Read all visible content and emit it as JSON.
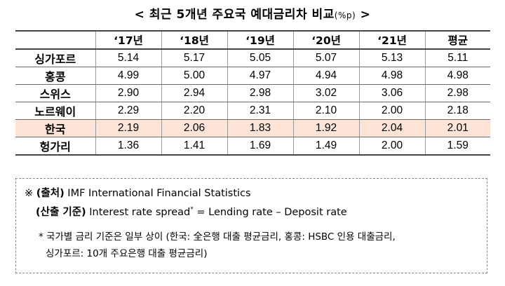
{
  "title": {
    "text": "< 최근 5개년 주요국 예대금리차 비교",
    "unit": "(%p)",
    "close": " >"
  },
  "table": {
    "headers": [
      "",
      "‘17년",
      "‘18년",
      "‘19년",
      "‘20년",
      "‘21년",
      "평균"
    ],
    "rows": [
      {
        "country": "싱가포르",
        "values": [
          "5.14",
          "5.17",
          "5.05",
          "5.07",
          "5.13",
          "5.11"
        ]
      },
      {
        "country": "홍콩",
        "values": [
          "4.99",
          "5.00",
          "4.97",
          "4.94",
          "4.98",
          "4.98"
        ]
      },
      {
        "country": "스위스",
        "values": [
          "2.90",
          "2.94",
          "2.98",
          "3.02",
          "3.06",
          "2.98"
        ]
      },
      {
        "country": "노르웨이",
        "values": [
          "2.29",
          "2.20",
          "2.31",
          "2.10",
          "2.00",
          "2.18"
        ]
      },
      {
        "country": "한국",
        "values": [
          "2.19",
          "2.06",
          "1.83",
          "1.92",
          "2.04",
          "2.01"
        ]
      },
      {
        "country": "헝가리",
        "values": [
          "1.36",
          "1.41",
          "1.69",
          "1.49",
          "2.00",
          "1.59"
        ]
      }
    ],
    "highlight_color": "#fde4d6"
  },
  "notes": {
    "source_mark": "※ ",
    "source_label": "(출처)",
    "source_text": " IMF International Financial Statistics",
    "calc_label": "(산출 기준)",
    "calc_text_a": " Interest rate spread",
    "calc_sup": "*",
    "calc_text_b": " = Lending rate – Deposit rate",
    "footnote_1": "* 국가별 금리 기준은 일부 상이 (한국: 全은행 대출 평균금리, 홍콩: HSBC 인용 대출금리,",
    "footnote_2": "싱가포르: 10개 주요은행 대출 평균금리)"
  }
}
